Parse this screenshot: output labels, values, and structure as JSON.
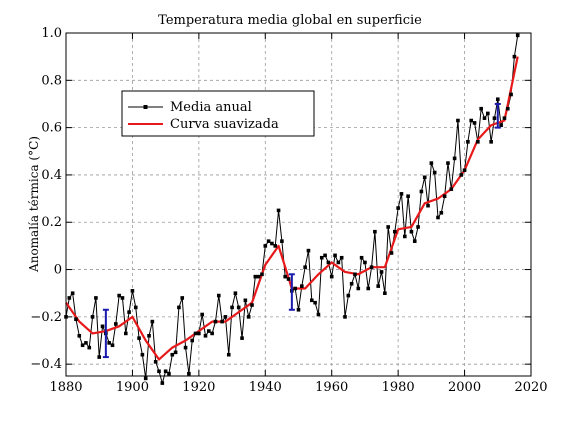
{
  "chart_data": {
    "type": "line",
    "title": "Temperatura media global en superficie",
    "xlabel": "",
    "ylabel": "Anomalía térmica (°C)",
    "xlim": [
      1880,
      2020
    ],
    "ylim": [
      -0.45,
      1.0
    ],
    "x_ticks": [
      1880,
      1900,
      1920,
      1940,
      1960,
      1980,
      2000,
      2020
    ],
    "y_ticks": [
      -0.4,
      -0.2,
      0,
      0.2,
      0.4,
      0.6,
      0.8,
      1.0
    ],
    "y_tick_labels": [
      "−0.4",
      "−0.2",
      "0",
      "0.2",
      "0.4",
      "0.6",
      "0.8",
      "1.0"
    ],
    "grid": "dashed",
    "legend_position": "upper-left",
    "series": [
      {
        "name": "Media anual",
        "color": "#000000",
        "marker": "square",
        "x": [
          1880,
          1881,
          1882,
          1883,
          1884,
          1885,
          1886,
          1887,
          1888,
          1889,
          1890,
          1891,
          1892,
          1893,
          1894,
          1895,
          1896,
          1897,
          1898,
          1899,
          1900,
          1901,
          1902,
          1903,
          1904,
          1905,
          1906,
          1907,
          1908,
          1909,
          1910,
          1911,
          1912,
          1913,
          1914,
          1915,
          1916,
          1917,
          1918,
          1919,
          1920,
          1921,
          1922,
          1923,
          1924,
          1925,
          1926,
          1927,
          1928,
          1929,
          1930,
          1931,
          1932,
          1933,
          1934,
          1935,
          1936,
          1937,
          1938,
          1939,
          1940,
          1941,
          1942,
          1943,
          1944,
          1945,
          1946,
          1947,
          1948,
          1949,
          1950,
          1951,
          1952,
          1953,
          1954,
          1955,
          1956,
          1957,
          1958,
          1959,
          1960,
          1961,
          1962,
          1963,
          1964,
          1965,
          1966,
          1967,
          1968,
          1969,
          1970,
          1971,
          1972,
          1973,
          1974,
          1975,
          1976,
          1977,
          1978,
          1979,
          1980,
          1981,
          1982,
          1983,
          1984,
          1985,
          1986,
          1987,
          1988,
          1989,
          1990,
          1991,
          1992,
          1993,
          1994,
          1995,
          1996,
          1997,
          1998,
          1999,
          2000,
          2001,
          2002,
          2003,
          2004,
          2005,
          2006,
          2007,
          2008,
          2009,
          2010,
          2011,
          2012,
          2013,
          2014,
          2015,
          2016
        ],
        "y": [
          -0.2,
          -0.12,
          -0.1,
          -0.21,
          -0.28,
          -0.32,
          -0.31,
          -0.33,
          -0.2,
          -0.12,
          -0.37,
          -0.24,
          -0.27,
          -0.31,
          -0.32,
          -0.23,
          -0.11,
          -0.12,
          -0.27,
          -0.18,
          -0.09,
          -0.16,
          -0.29,
          -0.36,
          -0.46,
          -0.28,
          -0.22,
          -0.39,
          -0.43,
          -0.48,
          -0.43,
          -0.44,
          -0.36,
          -0.35,
          -0.16,
          -0.12,
          -0.33,
          -0.44,
          -0.3,
          -0.27,
          -0.27,
          -0.19,
          -0.28,
          -0.26,
          -0.27,
          -0.22,
          -0.11,
          -0.22,
          -0.2,
          -0.36,
          -0.16,
          -0.1,
          -0.16,
          -0.29,
          -0.13,
          -0.2,
          -0.15,
          -0.03,
          -0.03,
          -0.02,
          0.1,
          0.12,
          0.11,
          0.1,
          0.25,
          0.12,
          -0.03,
          -0.04,
          -0.09,
          -0.08,
          -0.17,
          -0.07,
          0.01,
          0.08,
          -0.13,
          -0.14,
          -0.19,
          0.05,
          0.06,
          0.03,
          -0.03,
          0.06,
          0.03,
          0.05,
          -0.2,
          -0.11,
          -0.06,
          -0.02,
          -0.08,
          0.05,
          0.03,
          -0.08,
          0.01,
          0.16,
          -0.07,
          -0.01,
          -0.1,
          0.18,
          0.07,
          0.16,
          0.26,
          0.32,
          0.14,
          0.31,
          0.16,
          0.12,
          0.18,
          0.33,
          0.39,
          0.27,
          0.45,
          0.41,
          0.22,
          0.24,
          0.31,
          0.45,
          0.34,
          0.47,
          0.63,
          0.4,
          0.42,
          0.54,
          0.63,
          0.62,
          0.54,
          0.68,
          0.64,
          0.66,
          0.54,
          0.64,
          0.72,
          0.61,
          0.64,
          0.68,
          0.74,
          0.9,
          0.99
        ]
      },
      {
        "name": "Curva suavizada",
        "color": "#e8191a",
        "marker": "none",
        "x": [
          1880,
          1884,
          1888,
          1892,
          1896,
          1900,
          1904,
          1908,
          1912,
          1916,
          1920,
          1924,
          1928,
          1932,
          1936,
          1940,
          1944,
          1948,
          1952,
          1956,
          1960,
          1964,
          1968,
          1972,
          1976,
          1980,
          1984,
          1988,
          1992,
          1996,
          2000,
          2004,
          2008,
          2012,
          2016
        ],
        "y": [
          -0.14,
          -0.22,
          -0.27,
          -0.26,
          -0.24,
          -0.2,
          -0.3,
          -0.38,
          -0.33,
          -0.3,
          -0.26,
          -0.22,
          -0.22,
          -0.18,
          -0.14,
          0.02,
          0.1,
          -0.08,
          -0.08,
          -0.02,
          0.03,
          -0.01,
          -0.02,
          0.01,
          0.01,
          0.17,
          0.18,
          0.28,
          0.3,
          0.34,
          0.42,
          0.55,
          0.61,
          0.63,
          0.9
        ]
      }
    ],
    "uncertainty_bars": {
      "color": "#1a1aad",
      "items": [
        {
          "x": 1892,
          "y_low": -0.37,
          "y_high": -0.17
        },
        {
          "x": 1948,
          "y_low": -0.17,
          "y_high": -0.02
        },
        {
          "x": 2010,
          "y_low": 0.6,
          "y_high": 0.7
        }
      ]
    }
  }
}
